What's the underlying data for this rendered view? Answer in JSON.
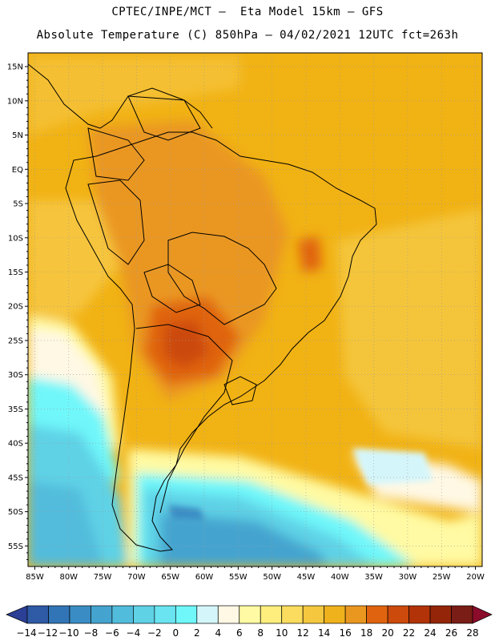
{
  "header": {
    "line1": "CPTEC/INPE/MCT –  Eta Model 15km – GFS",
    "line2": "Absolute Temperature (C) 850hPa – 04/02/2021 12UTC fct=263h"
  },
  "map": {
    "lon_range": [
      -86,
      -19
    ],
    "lat_range": [
      -58,
      17
    ],
    "lon_ticks": [
      {
        "v": -85,
        "label": "85W"
      },
      {
        "v": -80,
        "label": "80W"
      },
      {
        "v": -75,
        "label": "75W"
      },
      {
        "v": -70,
        "label": "70W"
      },
      {
        "v": -65,
        "label": "65W"
      },
      {
        "v": -60,
        "label": "60W"
      },
      {
        "v": -55,
        "label": "55W"
      },
      {
        "v": -50,
        "label": "50W"
      },
      {
        "v": -45,
        "label": "45W"
      },
      {
        "v": -40,
        "label": "40W"
      },
      {
        "v": -35,
        "label": "35W"
      },
      {
        "v": -30,
        "label": "30W"
      },
      {
        "v": -25,
        "label": "25W"
      },
      {
        "v": -20,
        "label": "20W"
      }
    ],
    "lat_ticks": [
      {
        "v": 15,
        "label": "15N"
      },
      {
        "v": 10,
        "label": "10N"
      },
      {
        "v": 5,
        "label": "5N"
      },
      {
        "v": 0,
        "label": "EQ"
      },
      {
        "v": -5,
        "label": "5S"
      },
      {
        "v": -10,
        "label": "10S"
      },
      {
        "v": -15,
        "label": "15S"
      },
      {
        "v": -20,
        "label": "20S"
      },
      {
        "v": -25,
        "label": "25S"
      },
      {
        "v": -30,
        "label": "30S"
      },
      {
        "v": -35,
        "label": "35S"
      },
      {
        "v": -40,
        "label": "40S"
      },
      {
        "v": -45,
        "label": "45S"
      },
      {
        "v": -50,
        "label": "50S"
      },
      {
        "v": -55,
        "label": "55S"
      }
    ],
    "background_color": "#f1b214"
  },
  "colorbar": {
    "colors": [
      "#2b3f96",
      "#2e5aa6",
      "#3275b6",
      "#3a8dc4",
      "#45a4cf",
      "#52bcdc",
      "#5fd2e6",
      "#69e4f0",
      "#6ff7fa",
      "#d4f6fb",
      "#fff8e4",
      "#fffaa3",
      "#fdee7d",
      "#fbdc5e",
      "#f4c73e",
      "#efb11c",
      "#ea9720",
      "#e0640f",
      "#cc4a0b",
      "#b23308",
      "#942508",
      "#7a1d16",
      "#8a0b2a"
    ],
    "labels": [
      "-14",
      "-12",
      "-10",
      "-8",
      "-6",
      "-4",
      "-2",
      "0",
      "2",
      "4",
      "6",
      "8",
      "10",
      "12",
      "14",
      "16",
      "18",
      "20",
      "22",
      "24",
      "26",
      "28"
    ]
  }
}
